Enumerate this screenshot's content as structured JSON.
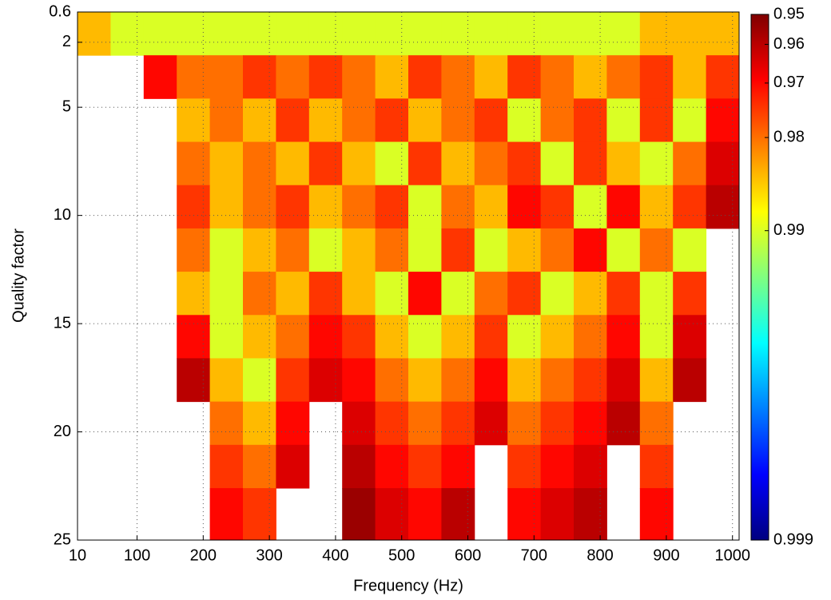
{
  "chart_data": {
    "type": "heatmap",
    "xlabel": "Frequency (Hz)",
    "ylabel": "Quality factor",
    "x_edges": [
      10,
      60,
      110,
      160,
      210,
      260,
      310,
      360,
      410,
      460,
      510,
      560,
      610,
      660,
      710,
      760,
      810,
      860,
      910,
      960,
      1010
    ],
    "y_edges": [
      0.6,
      2.6,
      4.6,
      6.6,
      8.6,
      10.6,
      12.6,
      14.6,
      16.6,
      18.6,
      20.6,
      22.6,
      25
    ],
    "z": [
      [
        0.985,
        0.99,
        0.99,
        0.99,
        0.99,
        0.99,
        0.99,
        0.99,
        0.99,
        0.99,
        0.99,
        0.99,
        0.99,
        0.99,
        0.99,
        0.99,
        0.99,
        0.985,
        0.985,
        0.985
      ],
      [
        null,
        null,
        0.97,
        0.98,
        0.98,
        0.975,
        0.98,
        0.975,
        0.98,
        0.985,
        0.975,
        0.98,
        0.985,
        0.975,
        0.98,
        0.985,
        0.98,
        0.975,
        0.985,
        0.975
      ],
      [
        null,
        null,
        null,
        0.985,
        0.98,
        0.985,
        0.975,
        0.985,
        0.98,
        0.975,
        0.985,
        0.98,
        0.975,
        0.99,
        0.98,
        0.975,
        0.99,
        0.975,
        0.99,
        0.97
      ],
      [
        null,
        null,
        null,
        0.98,
        0.985,
        0.98,
        0.985,
        0.975,
        0.985,
        0.99,
        0.975,
        0.985,
        0.98,
        0.975,
        0.99,
        0.975,
        0.985,
        0.99,
        0.98,
        0.965
      ],
      [
        null,
        null,
        null,
        0.975,
        0.985,
        0.98,
        0.975,
        0.985,
        0.98,
        0.975,
        0.99,
        0.98,
        0.985,
        0.97,
        0.975,
        0.99,
        0.97,
        0.985,
        0.975,
        0.96
      ],
      [
        null,
        null,
        null,
        0.98,
        0.99,
        0.985,
        0.98,
        0.99,
        0.985,
        0.98,
        0.99,
        0.975,
        0.99,
        0.985,
        0.98,
        0.97,
        0.99,
        0.98,
        0.99,
        null
      ],
      [
        null,
        null,
        null,
        0.985,
        0.99,
        0.98,
        0.985,
        0.975,
        0.985,
        0.99,
        0.97,
        0.99,
        0.98,
        0.975,
        0.99,
        0.985,
        0.975,
        0.99,
        0.975,
        null
      ],
      [
        null,
        null,
        null,
        0.97,
        0.99,
        0.985,
        0.98,
        0.97,
        0.975,
        0.985,
        0.99,
        0.985,
        0.975,
        0.99,
        0.985,
        0.98,
        0.97,
        0.99,
        0.965,
        null
      ],
      [
        null,
        null,
        null,
        0.96,
        0.985,
        0.99,
        0.975,
        0.965,
        0.97,
        0.98,
        0.985,
        0.98,
        0.97,
        0.985,
        0.98,
        0.975,
        0.965,
        0.985,
        0.96,
        null
      ],
      [
        null,
        null,
        null,
        null,
        0.98,
        0.985,
        0.97,
        null,
        0.965,
        0.975,
        0.98,
        0.975,
        0.965,
        0.98,
        0.975,
        0.97,
        0.96,
        0.98,
        null,
        null
      ],
      [
        null,
        null,
        null,
        null,
        0.975,
        0.98,
        0.965,
        null,
        0.96,
        0.97,
        0.975,
        0.97,
        null,
        0.975,
        0.97,
        0.965,
        null,
        0.975,
        null,
        null
      ],
      [
        null,
        null,
        null,
        null,
        0.97,
        0.975,
        null,
        null,
        0.955,
        0.965,
        0.97,
        0.96,
        null,
        0.97,
        0.965,
        0.96,
        null,
        0.97,
        null,
        null
      ]
    ],
    "xlim": [
      10,
      1010
    ],
    "xticks": [
      10,
      100,
      200,
      300,
      400,
      500,
      600,
      700,
      800,
      900,
      1000
    ],
    "ylim": [
      0.6,
      25
    ],
    "yticks": [
      0.6,
      2,
      5,
      10,
      15,
      20,
      25
    ],
    "y_inverted": true,
    "grid": true,
    "colormap": "jet-reversed",
    "colorbar": {
      "scale": "log-complement",
      "lim": [
        0.95,
        0.999
      ],
      "ticks": [
        0.95,
        0.96,
        0.97,
        0.98,
        0.99,
        0.999
      ]
    }
  }
}
